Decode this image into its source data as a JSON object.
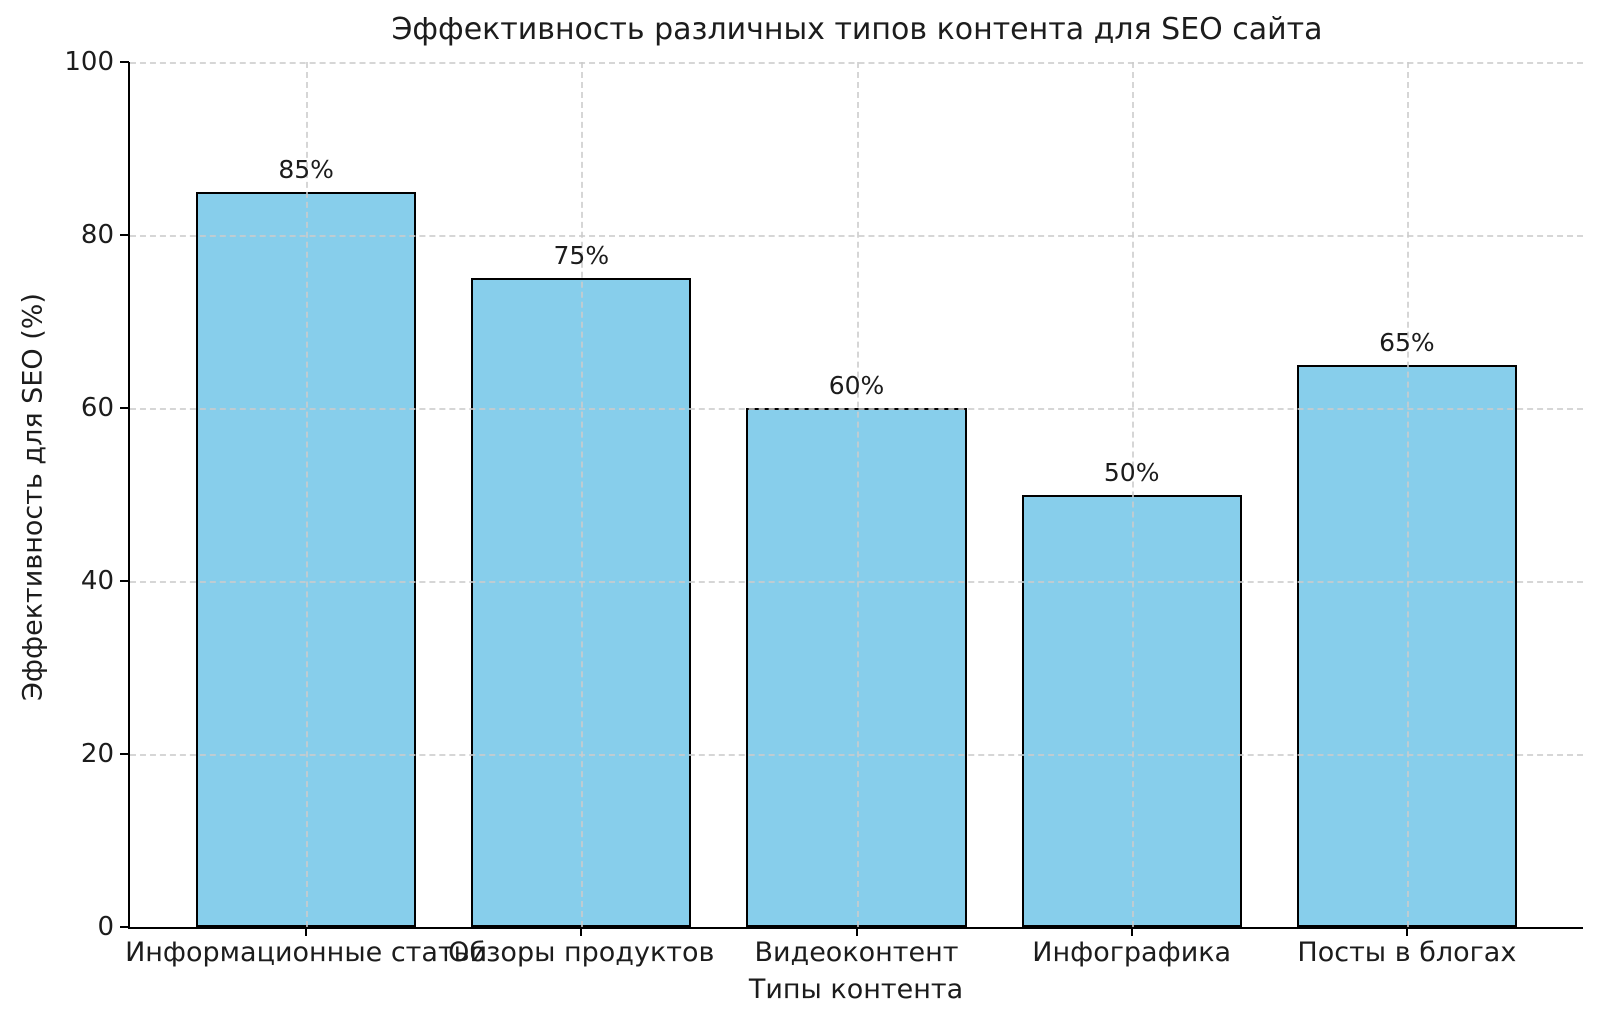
{
  "chart_data": {
    "type": "bar",
    "title": "Эффективность различных типов контента для SEO сайта",
    "xlabel": "Типы контента",
    "ylabel": "Эффективность для SEO (%)",
    "categories": [
      "Информационные статьи",
      "Обзоры продуктов",
      "Видеоконтент",
      "Инфографика",
      "Посты в блогах"
    ],
    "values": [
      85,
      75,
      60,
      50,
      65
    ],
    "bar_labels": [
      "85%",
      "75%",
      "60%",
      "50%",
      "65%"
    ],
    "ylim": [
      0,
      100
    ],
    "yticks": [
      0,
      20,
      40,
      60,
      80,
      100
    ],
    "grid": "dashed, horizontal and vertical, drawn above bars",
    "legend": "none",
    "colors": {
      "bar_fill": "#87CEEB",
      "bar_edge": "#000000",
      "grid": "#cccccc",
      "text": "#1c1c1c",
      "background": "#ffffff"
    }
  }
}
